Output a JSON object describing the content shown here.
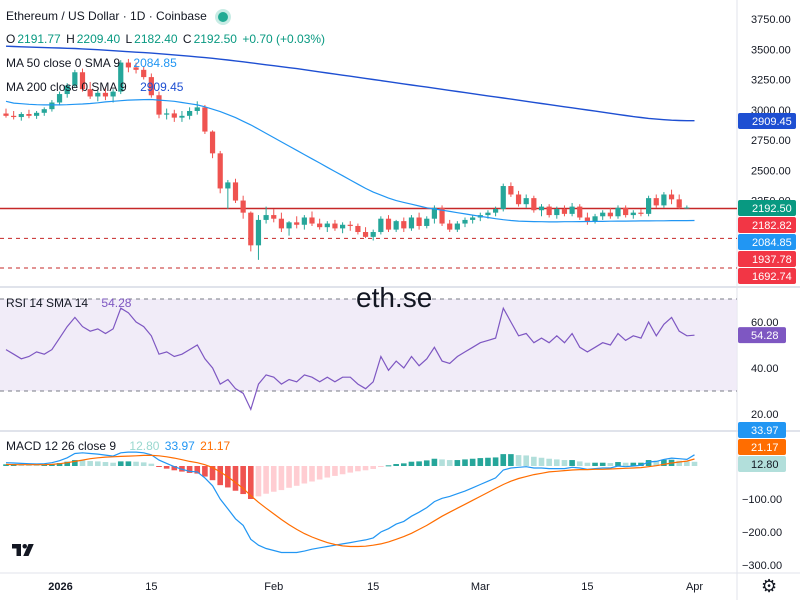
{
  "symbol": {
    "title": "Ethereum / US Dollar · 1D · Coinbase"
  },
  "ohlc": {
    "o_label": "O",
    "o": "2191.77",
    "h_label": "H",
    "h": "2209.40",
    "l_label": "L",
    "l": "2182.40",
    "c_label": "C",
    "c": "2192.50",
    "change": "+0.70 (+0.03%)"
  },
  "ma50": {
    "label": "MA 50 close 0 SMA 9",
    "value": "2084.85",
    "color": "#2196f3"
  },
  "ma200": {
    "label": "MA 200 close 0 SMA 9",
    "value": "2909.45",
    "color": "#1e4fd2"
  },
  "rsi": {
    "label": "RSI 14 SMA 14",
    "value": "54.28",
    "color": "#7e57c2"
  },
  "macd": {
    "label": "MACD 12 26 close 9",
    "v1": "12.80",
    "v2": "33.97",
    "v3": "21.17"
  },
  "watermark": "eth.se",
  "colors": {
    "up": "#26a69a",
    "down": "#ef5350",
    "up_hist": "#26a69a",
    "down_hist": "#ef5350",
    "macd_line": "#2196f3",
    "signal_line": "#ff6d00"
  },
  "price_axis": {
    "ticks": [
      "3750.00",
      "3500.00",
      "3250.00",
      "3000.00",
      "2750.00",
      "2500.00",
      "2250.00"
    ]
  },
  "price_tags": [
    {
      "text": "2909.45",
      "bg": "#1e4fd2",
      "price": 2909.45
    },
    {
      "text": "2192.50",
      "bg": "#089981",
      "price": 2192.5
    },
    {
      "text": "2182.82",
      "bg": "#f23645",
      "price": 2182.82
    },
    {
      "text": "2084.85",
      "bg": "#2196f3",
      "price": 2084.85
    },
    {
      "text": "1937.78",
      "bg": "#f23645",
      "price": 1937.78
    },
    {
      "text": "1692.74",
      "bg": "#f23645",
      "price": 1692.74
    }
  ],
  "rsi_axis": {
    "ticks": [
      "60.00",
      "40.00",
      "20.00"
    ],
    "tag": "54.28"
  },
  "macd_axis": {
    "ticks": [
      "−100.00",
      "−200.00",
      "−300.00"
    ],
    "tags": [
      "33.97",
      "21.17",
      "12.80"
    ]
  },
  "time_axis": {
    "labels": [
      "2026",
      "15",
      "Feb",
      "15",
      "Mar",
      "15",
      "Apr",
      "15"
    ]
  },
  "chart_data": [
    {
      "type": "candlestick",
      "title": "Ethereum / US Dollar · 1D · Coinbase",
      "ylim": [
        1650,
        3850
      ],
      "x_start_index": 0,
      "candles": [
        [
          2969,
          3010,
          2935,
          2950
        ],
        [
          2950,
          2990,
          2920,
          2940
        ],
        [
          2940,
          2980,
          2910,
          2965
        ],
        [
          2965,
          3000,
          2930,
          2950
        ],
        [
          2950,
          2990,
          2925,
          2975
        ],
        [
          2975,
          3020,
          2950,
          3005
        ],
        [
          3005,
          3080,
          2985,
          3060
        ],
        [
          3060,
          3150,
          3040,
          3130
        ],
        [
          3130,
          3220,
          3100,
          3200
        ],
        [
          3200,
          3330,
          3180,
          3310
        ],
        [
          3310,
          3340,
          3150,
          3170
        ],
        [
          3170,
          3230,
          3090,
          3110
        ],
        [
          3110,
          3160,
          3070,
          3140
        ],
        [
          3140,
          3180,
          3080,
          3110
        ],
        [
          3110,
          3170,
          3060,
          3150
        ],
        [
          3150,
          3410,
          3130,
          3390
        ],
        [
          3390,
          3420,
          3310,
          3350
        ],
        [
          3350,
          3390,
          3300,
          3330
        ],
        [
          3330,
          3360,
          3250,
          3270
        ],
        [
          3270,
          3300,
          3100,
          3120
        ],
        [
          3120,
          3150,
          2930,
          2960
        ],
        [
          2960,
          3010,
          2920,
          2970
        ],
        [
          2970,
          3000,
          2900,
          2935
        ],
        [
          2935,
          2990,
          2900,
          2950
        ],
        [
          2950,
          3020,
          2920,
          2990
        ],
        [
          2990,
          3070,
          2960,
          3020
        ],
        [
          3020,
          3040,
          2800,
          2820
        ],
        [
          2820,
          2830,
          2600,
          2640
        ],
        [
          2640,
          2660,
          2310,
          2350
        ],
        [
          2350,
          2420,
          2180,
          2400
        ],
        [
          2400,
          2430,
          2230,
          2250
        ],
        [
          2250,
          2290,
          2100,
          2150
        ],
        [
          2150,
          2160,
          1830,
          1880
        ],
        [
          1880,
          2130,
          1760,
          2090
        ],
        [
          2090,
          2200,
          2060,
          2130
        ],
        [
          2130,
          2180,
          2070,
          2100
        ],
        [
          2100,
          2150,
          1990,
          2020
        ],
        [
          2020,
          2080,
          1960,
          2070
        ],
        [
          2070,
          2120,
          2020,
          2050
        ],
        [
          2050,
          2130,
          2010,
          2110
        ],
        [
          2110,
          2160,
          2040,
          2060
        ],
        [
          2060,
          2100,
          2010,
          2030
        ],
        [
          2030,
          2080,
          1990,
          2060
        ],
        [
          2060,
          2090,
          2000,
          2020
        ],
        [
          2020,
          2070,
          1980,
          2050
        ],
        [
          2050,
          2080,
          2000,
          2040
        ],
        [
          2040,
          2060,
          1970,
          1990
        ],
        [
          1990,
          2030,
          1940,
          1950
        ],
        [
          1950,
          2010,
          1920,
          1990
        ],
        [
          1990,
          2120,
          1970,
          2100
        ],
        [
          2100,
          2130,
          1990,
          2010
        ],
        [
          2010,
          2090,
          1990,
          2080
        ],
        [
          2080,
          2110,
          1990,
          2020
        ],
        [
          2020,
          2130,
          2000,
          2110
        ],
        [
          2110,
          2150,
          2010,
          2040
        ],
        [
          2040,
          2120,
          2020,
          2100
        ],
        [
          2100,
          2210,
          2060,
          2190
        ],
        [
          2190,
          2210,
          2040,
          2060
        ],
        [
          2060,
          2090,
          1990,
          2010
        ],
        [
          2010,
          2080,
          1990,
          2060
        ],
        [
          2060,
          2110,
          2030,
          2090
        ],
        [
          2090,
          2130,
          2060,
          2110
        ],
        [
          2110,
          2150,
          2080,
          2130
        ],
        [
          2130,
          2170,
          2100,
          2150
        ],
        [
          2150,
          2200,
          2120,
          2180
        ],
        [
          2180,
          2390,
          2160,
          2370
        ],
        [
          2370,
          2400,
          2280,
          2300
        ],
        [
          2300,
          2330,
          2200,
          2220
        ],
        [
          2220,
          2300,
          2190,
          2270
        ],
        [
          2270,
          2290,
          2150,
          2170
        ],
        [
          2170,
          2220,
          2120,
          2200
        ],
        [
          2200,
          2220,
          2110,
          2130
        ],
        [
          2130,
          2200,
          2100,
          2180
        ],
        [
          2180,
          2210,
          2120,
          2140
        ],
        [
          2140,
          2230,
          2120,
          2200
        ],
        [
          2200,
          2220,
          2090,
          2110
        ],
        [
          2110,
          2150,
          2050,
          2080
        ],
        [
          2080,
          2140,
          2060,
          2120
        ],
        [
          2120,
          2170,
          2090,
          2150
        ],
        [
          2150,
          2190,
          2100,
          2120
        ],
        [
          2120,
          2210,
          2100,
          2190
        ],
        [
          2190,
          2210,
          2110,
          2130
        ],
        [
          2130,
          2170,
          2100,
          2150
        ],
        [
          2150,
          2180,
          2120,
          2140
        ],
        [
          2140,
          2290,
          2120,
          2270
        ],
        [
          2270,
          2300,
          2190,
          2210
        ],
        [
          2210,
          2320,
          2190,
          2300
        ],
        [
          2300,
          2340,
          2220,
          2260
        ],
        [
          2260,
          2300,
          2180,
          2191.77
        ],
        [
          2191.77,
          2209.4,
          2182.4,
          2192.5
        ]
      ],
      "ma50": [
        3070,
        3055,
        3050,
        3045,
        3042,
        3040,
        3040,
        3040,
        3042,
        3045,
        3048,
        3052,
        3058,
        3065,
        3070,
        3075,
        3080,
        3082,
        3084,
        3085,
        3080,
        3075,
        3070,
        3060,
        3050,
        3040,
        3025,
        3005,
        2985,
        2960,
        2935,
        2905,
        2875,
        2840,
        2805,
        2770,
        2735,
        2700,
        2665,
        2630,
        2595,
        2560,
        2525,
        2490,
        2455,
        2420,
        2385,
        2350,
        2320,
        2295,
        2270,
        2250,
        2235,
        2220,
        2205,
        2190,
        2180,
        2170,
        2160,
        2150,
        2140,
        2130,
        2120,
        2110,
        2100,
        2092,
        2085,
        2080,
        2078,
        2076,
        2075,
        2074,
        2074,
        2075,
        2075,
        2076,
        2077,
        2078,
        2078,
        2079,
        2080,
        2080,
        2081,
        2082,
        2082,
        2083,
        2083,
        2084,
        2084,
        2084.5,
        2084.85
      ],
      "ma200": [
        3525,
        3523,
        3520,
        3518,
        3516,
        3514,
        3512,
        3510,
        3508,
        3506,
        3503,
        3500,
        3496,
        3492,
        3488,
        3484,
        3480,
        3476,
        3472,
        3468,
        3463,
        3458,
        3453,
        3448,
        3443,
        3437,
        3431,
        3425,
        3418,
        3411,
        3404,
        3396,
        3388,
        3380,
        3372,
        3364,
        3356,
        3348,
        3340,
        3331,
        3322,
        3313,
        3304,
        3295,
        3286,
        3277,
        3268,
        3259,
        3250,
        3241,
        3232,
        3223,
        3214,
        3205,
        3196,
        3187,
        3178,
        3169,
        3160,
        3151,
        3142,
        3133,
        3124,
        3115,
        3106,
        3097,
        3088,
        3079,
        3070,
        3061,
        3052,
        3043,
        3034,
        3025,
        3016,
        3007,
        2998,
        2989,
        2980,
        2971,
        2962,
        2953,
        2944,
        2936,
        2929,
        2923,
        2918,
        2914,
        2911,
        2910,
        2909.45
      ],
      "horizontal_lines": [
        2182.82,
        1937.78,
        1692.74
      ],
      "series_names": [
        "MA 50 close 0 SMA 9",
        "MA 200 close 0 SMA 9"
      ]
    },
    {
      "type": "line",
      "title": "RSI 14 SMA 14",
      "ylim": [
        15,
        75
      ],
      "bands": [
        30,
        70
      ],
      "values": [
        48,
        46,
        44,
        45,
        47,
        46,
        48,
        53,
        58,
        62,
        58,
        56,
        57,
        55,
        57,
        66,
        64,
        60,
        58,
        54,
        46,
        47,
        45,
        46,
        48,
        50,
        44,
        40,
        33,
        35,
        31,
        29,
        22,
        33,
        37,
        36,
        33,
        35,
        34,
        37,
        36,
        34,
        36,
        34,
        36,
        36,
        33,
        31,
        34,
        45,
        39,
        43,
        40,
        45,
        41,
        44,
        49,
        43,
        42,
        45,
        47,
        49,
        51,
        52,
        53,
        66,
        60,
        54,
        55,
        51,
        53,
        51,
        54,
        51,
        55,
        49,
        47,
        49,
        51,
        50,
        55,
        52,
        54,
        53,
        60,
        54,
        59,
        62,
        56,
        54,
        54.28
      ]
    },
    {
      "type": "bar+line",
      "title": "MACD 12 26 close 9",
      "ylim": [
        -320,
        60
      ],
      "histogram": [
        5,
        6,
        5,
        4,
        3,
        4,
        6,
        9,
        13,
        18,
        17,
        15,
        14,
        12,
        10,
        14,
        14,
        13,
        11,
        7,
        -3,
        -8,
        -13,
        -17,
        -21,
        -23,
        -32,
        -43,
        -58,
        -65,
        -75,
        -85,
        -100,
        -92,
        -84,
        -78,
        -73,
        -66,
        -60,
        -53,
        -47,
        -41,
        -35,
        -30,
        -25,
        -20,
        -16,
        -13,
        -9,
        -2,
        2,
        6,
        8,
        13,
        14,
        17,
        22,
        20,
        18,
        18,
        20,
        22,
        24,
        25,
        26,
        36,
        36,
        33,
        32,
        28,
        25,
        22,
        20,
        18,
        18,
        14,
        10,
        10,
        10,
        9,
        12,
        10,
        10,
        10,
        18,
        16,
        19,
        19,
        16,
        14,
        12.8
      ],
      "macd_line": [
        10,
        9,
        8,
        7,
        6,
        7,
        10,
        16,
        25,
        38,
        40,
        38,
        36,
        33,
        30,
        40,
        42,
        42,
        40,
        34,
        18,
        8,
        -2,
        -10,
        -16,
        -18,
        -36,
        -60,
        -100,
        -130,
        -160,
        -180,
        -222,
        -240,
        -250,
        -256,
        -262,
        -262,
        -262,
        -258,
        -252,
        -248,
        -244,
        -240,
        -236,
        -232,
        -228,
        -224,
        -218,
        -200,
        -190,
        -176,
        -168,
        -152,
        -140,
        -126,
        -108,
        -98,
        -92,
        -84,
        -76,
        -66,
        -56,
        -46,
        -36,
        -12,
        -6,
        -4,
        -2,
        -6,
        -6,
        -8,
        -8,
        -8,
        -4,
        -6,
        -10,
        -8,
        -6,
        -6,
        0,
        -2,
        0,
        2,
        12,
        14,
        20,
        24,
        22,
        20,
        33.97
      ],
      "signal_line": [
        5,
        4,
        4,
        4,
        4,
        4,
        5,
        7,
        10,
        14,
        18,
        22,
        25,
        27,
        28,
        29,
        30,
        31,
        32,
        32,
        31,
        28,
        24,
        19,
        14,
        10,
        4,
        -5,
        -18,
        -33,
        -50,
        -68,
        -90,
        -110,
        -128,
        -145,
        -162,
        -178,
        -192,
        -205,
        -215,
        -224,
        -232,
        -238,
        -242,
        -244,
        -244,
        -243,
        -240,
        -236,
        -230,
        -222,
        -214,
        -204,
        -192,
        -180,
        -166,
        -152,
        -140,
        -128,
        -116,
        -104,
        -92,
        -80,
        -68,
        -56,
        -46,
        -38,
        -32,
        -26,
        -22,
        -18,
        -16,
        -14,
        -12,
        -11,
        -11,
        -10,
        -10,
        -9,
        -8,
        -7,
        -6,
        -5,
        -2,
        1,
        5,
        9,
        12,
        15,
        21.17
      ]
    }
  ]
}
